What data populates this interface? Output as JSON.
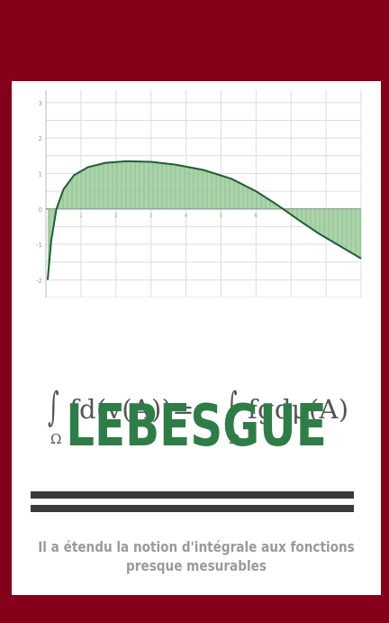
{
  "colors": {
    "frame": "#850019",
    "page": "#ffffff",
    "title": "#2e7d47",
    "fill_area": "#9ccc9c",
    "curve": "#1f5e33",
    "bars": "#3a3a3a",
    "caption": "#9a9a9a",
    "formula": "#555555"
  },
  "formula": {
    "integral_symbol": "∫",
    "domain_left": "Ω",
    "domain_right": "Ω",
    "left_expression": "fd(v(A))=",
    "right_expression": "fgdμ(A)"
  },
  "title": "LEBESGUE",
  "caption": {
    "line1": "Il a étendu la notion d'intégrale aux fonctions",
    "line2": "presque mesurables"
  },
  "chart_data": {
    "type": "area",
    "grid": true,
    "x_range": [
      0,
      9
    ],
    "y_range": [
      -2.5,
      3.2
    ],
    "y_tick_labels": [
      "3",
      "2",
      "1",
      "0",
      "-1",
      "-2"
    ],
    "x_tick_labels": [
      "1",
      "2",
      "3",
      "4",
      "5",
      "6"
    ],
    "series": [
      {
        "x": [
          0.05,
          0.15,
          0.3,
          0.5,
          0.8,
          1.2,
          1.7,
          2.3,
          3.0,
          3.7,
          4.5,
          5.3,
          6.0,
          6.6,
          7.2,
          7.8,
          8.4,
          9.0
        ],
        "y": [
          -2.0,
          -0.9,
          0.0,
          0.55,
          0.95,
          1.18,
          1.3,
          1.35,
          1.33,
          1.25,
          1.1,
          0.85,
          0.5,
          0.12,
          -0.3,
          -0.7,
          -1.05,
          -1.4
        ]
      }
    ]
  }
}
